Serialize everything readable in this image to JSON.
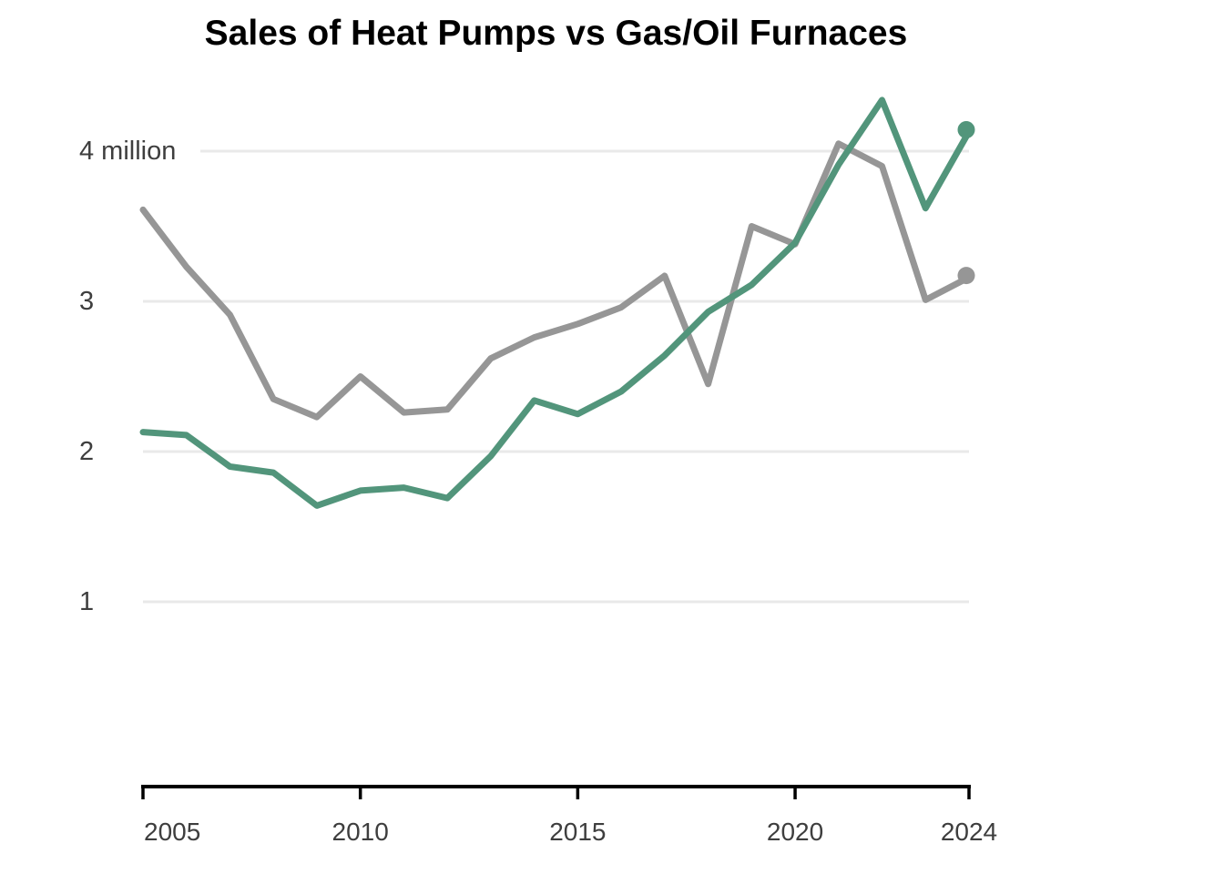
{
  "chart_data": {
    "type": "line",
    "title": "Sales of Heat Pumps vs Gas/Oil Furnaces",
    "unit": "million",
    "x": [
      2005,
      2006,
      2007,
      2008,
      2009,
      2010,
      2011,
      2012,
      2013,
      2014,
      2015,
      2016,
      2017,
      2018,
      2019,
      2020,
      2021,
      2022,
      2023,
      2024
    ],
    "series": [
      {
        "name": "Heat Pumps",
        "color": "#52957B",
        "values": [
          2.13,
          2.11,
          1.9,
          1.86,
          1.64,
          1.74,
          1.76,
          1.69,
          1.97,
          2.34,
          2.25,
          2.4,
          2.64,
          2.93,
          3.11,
          3.39,
          3.91,
          4.34,
          3.62,
          4.13
        ]
      },
      {
        "name": "Gas/Oil Furnaces",
        "color": "#969696",
        "values": [
          3.61,
          3.23,
          2.91,
          2.35,
          2.23,
          2.5,
          2.26,
          2.28,
          2.62,
          2.76,
          2.85,
          2.96,
          3.17,
          2.45,
          3.5,
          3.38,
          4.05,
          3.9,
          3.01,
          3.16
        ]
      }
    ],
    "x_ticks": [
      {
        "value": 2005,
        "label": "2005"
      },
      {
        "value": 2010,
        "label": "2010"
      },
      {
        "value": 2015,
        "label": "2015"
      },
      {
        "value": 2020,
        "label": "2020"
      },
      {
        "value": 2024,
        "label": "2024"
      }
    ],
    "y_ticks": [
      {
        "value": 4,
        "label": "4 million"
      },
      {
        "value": 3,
        "label": "3"
      },
      {
        "value": 2,
        "label": "2"
      },
      {
        "value": 1,
        "label": "1"
      }
    ],
    "xlim": [
      2005,
      2024
    ],
    "ylim": [
      0,
      4.6
    ],
    "grid": "horizontal",
    "legend": "none",
    "end_dots": true,
    "colors": {
      "gridline": "#E9E9E9",
      "axis": "#000000",
      "tick_label": "#3E3E3E",
      "title": "#000000",
      "background": "#FFFFFF"
    }
  }
}
